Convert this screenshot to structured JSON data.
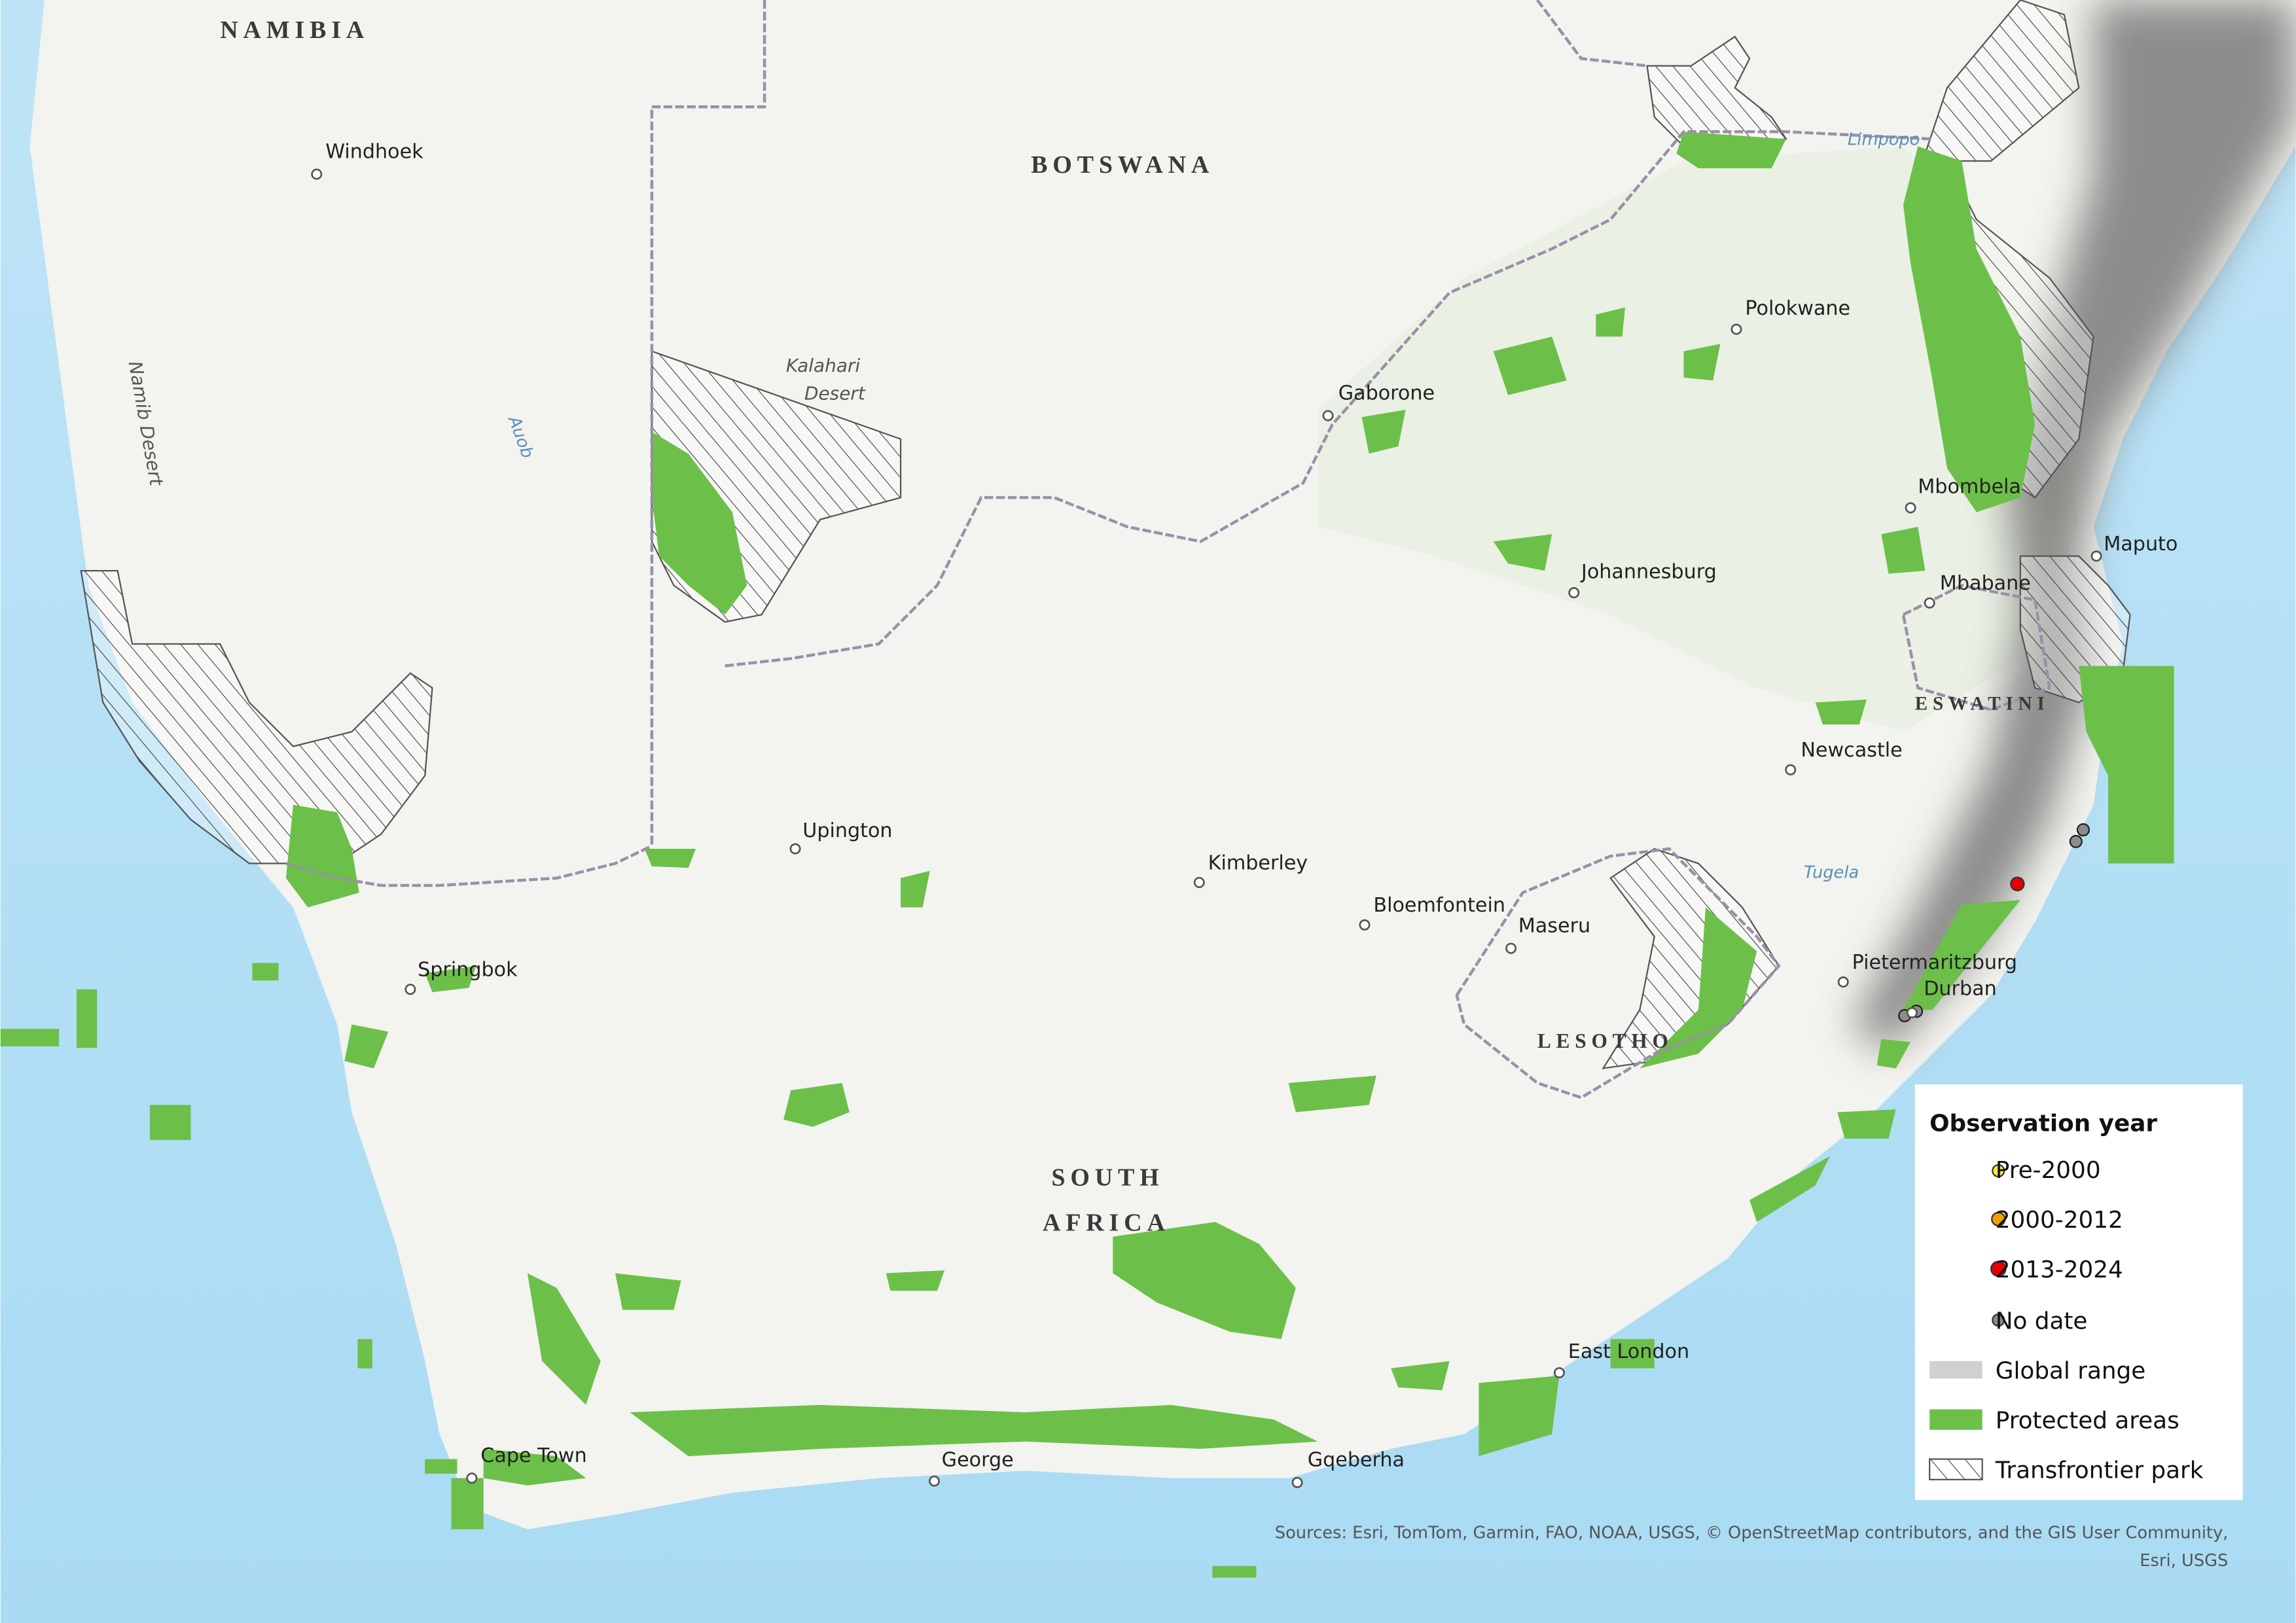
{
  "map": {
    "countries": [
      "NAMIBIA",
      "BOTSWANA",
      "SOUTH",
      "AFRICA",
      "LESOTHO",
      "ESWATINI"
    ],
    "cities": [
      "Windhoek",
      "Gaborone",
      "Polokwane",
      "Mbombela",
      "Maputo",
      "Johannesburg",
      "Mbabane",
      "Newcastle",
      "Upington",
      "Kimberley",
      "Bloemfontein",
      "Maseru",
      "Pietermaritzburg",
      "Durban",
      "Springbok",
      "East London",
      "Cape Town",
      "George",
      "Gqeberha"
    ],
    "features": [
      "Kalahari",
      "Desert",
      "Namib Desert"
    ],
    "rivers": [
      "Auob",
      "Limpopo",
      "Tugela"
    ]
  },
  "legend": {
    "title": "Observation year",
    "items": [
      "Pre-2000",
      "2000-2012",
      "2013-2024",
      "No date",
      "Global range",
      "Protected areas",
      "Transfrontier park"
    ]
  },
  "sources": [
    "Sources: Esri, TomTom, Garmin, FAO, NOAA, USGS, © OpenStreetMap contributors, and the GIS User Community,",
    "Esri, USGS"
  ]
}
